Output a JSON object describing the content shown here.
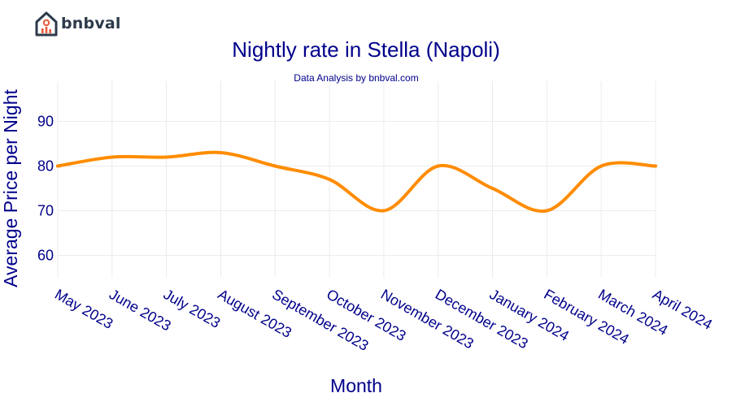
{
  "brand": {
    "name": "bnbval"
  },
  "chart_data": {
    "type": "line",
    "title": "Nightly rate in Stella (Napoli)",
    "subtitle": "Data Analysis by bnbval.com",
    "xlabel": "Month",
    "ylabel": "Average Price per Night",
    "categories": [
      "May 2023",
      "June 2023",
      "July 2023",
      "August 2023",
      "September 2023",
      "October 2023",
      "November 2023",
      "December 2023",
      "January 2024",
      "February 2024",
      "March 2024",
      "April 2024"
    ],
    "series": [
      {
        "values": [
          80,
          82,
          82,
          83,
          80,
          77,
          70,
          80,
          75,
          70,
          80,
          80
        ],
        "color": "#ff8c00"
      }
    ],
    "yticks": [
      60,
      70,
      80,
      90
    ],
    "ylim": [
      55,
      99
    ],
    "grid": true,
    "legend": false
  }
}
